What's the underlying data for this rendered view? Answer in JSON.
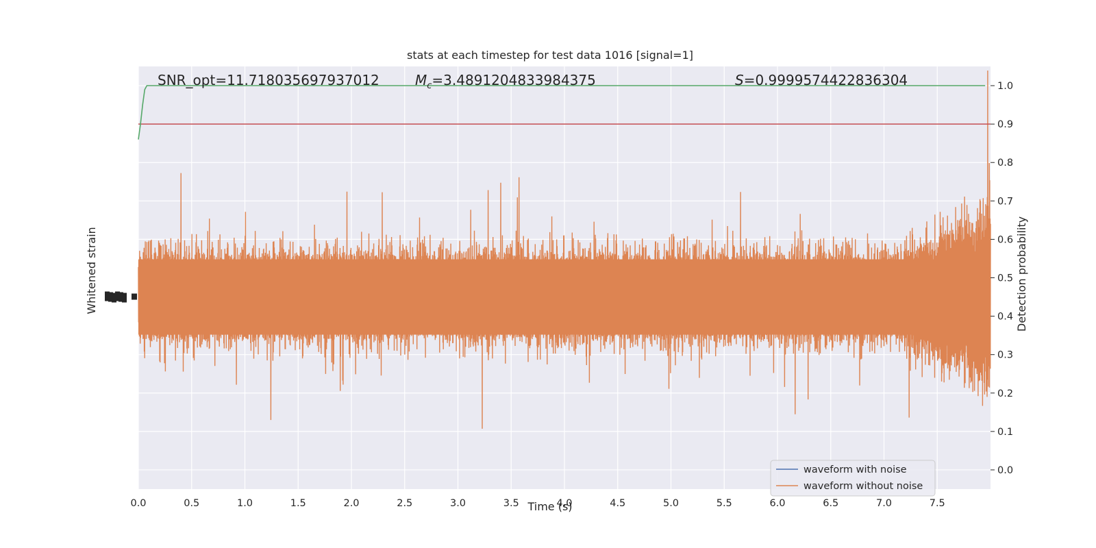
{
  "chart_data": {
    "type": "line",
    "title": "stats at each timestep for test data 1016 [signal=1]",
    "xlabel": "Time (s)",
    "ylabel_left": "Whitened strain",
    "ylabel_right": "Detection probability",
    "xlim": [
      0.0,
      8.0
    ],
    "ylim_right": [
      -0.05,
      1.05
    ],
    "x_ticks": [
      "0.0",
      "0.5",
      "1.0",
      "1.5",
      "2.0",
      "2.5",
      "3.0",
      "3.5",
      "4.0",
      "4.5",
      "5.0",
      "5.5",
      "6.0",
      "6.5",
      "7.0",
      "7.5"
    ],
    "y_ticks_right": [
      "0.0",
      "0.1",
      "0.2",
      "0.3",
      "0.4",
      "0.5",
      "0.6",
      "0.7",
      "0.8",
      "0.9",
      "1.0"
    ],
    "annotations": {
      "snr_prefix": "SNR_opt=",
      "snr": "11.718035697937012",
      "mc_symbol": "M",
      "mc_sub": "c",
      "mc_value": "=3.4891204833984375",
      "s_symbol": "S",
      "s_value": "=0.9999574422836304"
    },
    "threshold": 0.9,
    "detection_probability": {
      "x": [
        0.0,
        0.02,
        0.04,
        0.06,
        0.08,
        0.1,
        0.2,
        4.0,
        7.95
      ],
      "y": [
        0.86,
        0.9,
        0.95,
        0.99,
        1.0,
        1.0,
        1.0,
        1.0,
        1.0
      ]
    },
    "legend": [
      "waveform with noise",
      "waveform without noise"
    ],
    "legend_position": "lower-right",
    "grid": true,
    "colors": {
      "background": "#eaeaf2",
      "noisy": "#4c72b0",
      "clean": "#dd8452",
      "probability": "#55a868",
      "threshold": "#c44e52",
      "grid": "#ffffff"
    }
  }
}
